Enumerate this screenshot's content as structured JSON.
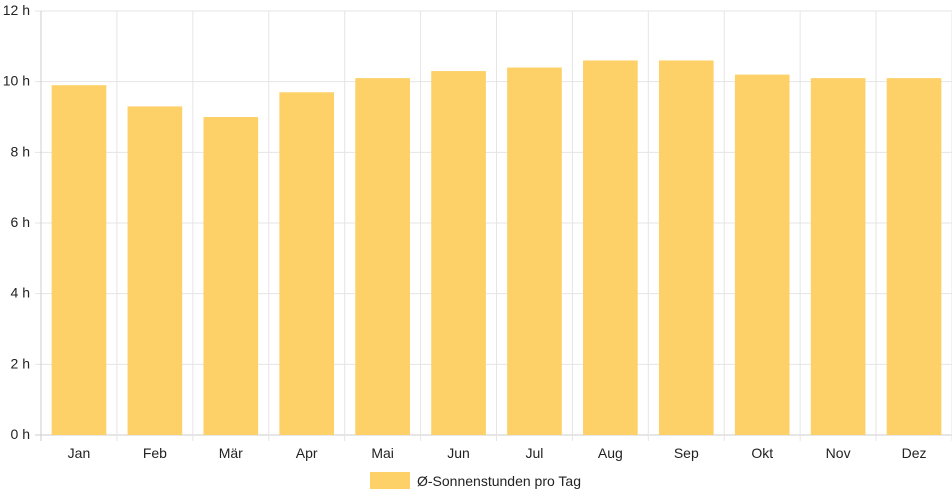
{
  "chart_data": {
    "type": "bar",
    "categories": [
      "Jan",
      "Feb",
      "Mär",
      "Apr",
      "Mai",
      "Jun",
      "Jul",
      "Aug",
      "Sep",
      "Okt",
      "Nov",
      "Dez"
    ],
    "series": [
      {
        "name": "Ø-Sonnenstunden pro Tag",
        "values": [
          9.9,
          9.3,
          9.0,
          9.7,
          10.1,
          10.3,
          10.4,
          10.6,
          10.6,
          10.2,
          10.1,
          10.1
        ]
      }
    ],
    "ylim": [
      0,
      12
    ],
    "yticks": [
      0,
      2,
      4,
      6,
      8,
      10,
      12
    ],
    "ytick_suffix": " h",
    "grid": true,
    "legend_position": "bottom",
    "colors": {
      "bar": "#fdd068",
      "grid": "#e5e5e5",
      "axis": "#cccccc"
    }
  }
}
